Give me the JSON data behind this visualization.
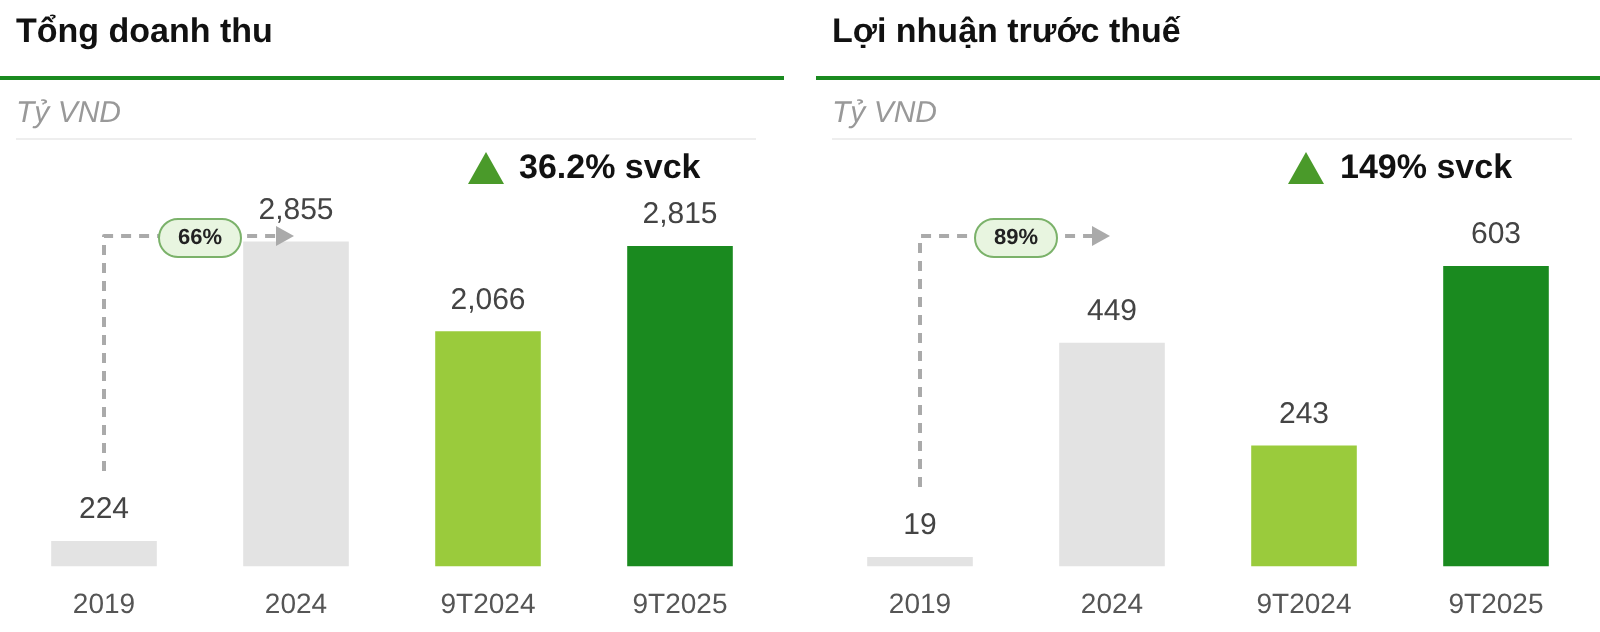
{
  "chart_data": [
    {
      "type": "bar",
      "title": "Tổng doanh thu",
      "ylabel": "Tỷ VND",
      "categories": [
        "2019",
        "2024",
        "9T2024",
        "9T2025"
      ],
      "values": [
        224,
        2855,
        2066,
        2815
      ],
      "value_labels": [
        "224",
        "2,855",
        "2,066",
        "2,815"
      ],
      "colors": [
        "#e3e3e3",
        "#e3e3e3",
        "#9acb3c",
        "#1a8a1f"
      ],
      "tick_labels": "x",
      "annotations": [
        "66%",
        "36.2% svck"
      ]
    },
    {
      "type": "bar",
      "title": "Lợi nhuận trước thuế",
      "ylabel": "Tỷ VND",
      "categories": [
        "2019",
        "2024",
        "9T2024",
        "9T2025"
      ],
      "values": [
        19,
        449,
        243,
        603
      ],
      "value_labels": [
        "19",
        "449",
        "243",
        "603"
      ],
      "colors": [
        "#e3e3e3",
        "#e3e3e3",
        "#9acb3c",
        "#1a8a1f"
      ],
      "tick_labels": "x",
      "annotations": [
        "89%",
        "149% svck"
      ]
    }
  ]
}
